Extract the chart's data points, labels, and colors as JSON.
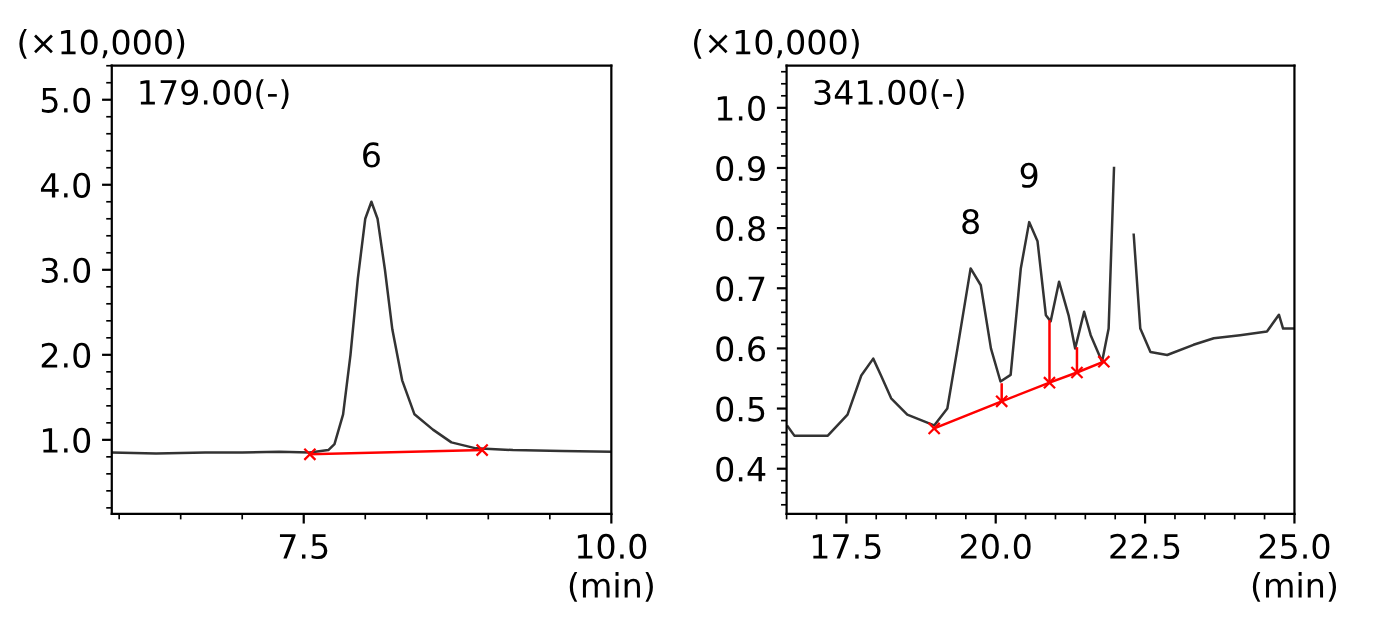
{
  "chart_data": [
    {
      "type": "line",
      "ylabel": "(×10,000)",
      "xlabel": "(min)",
      "annotations": [
        "179.00(-)",
        {
          "text": "6",
          "x": 8.05,
          "y": 3.8
        }
      ],
      "xlim": [
        5.94,
        10.0
      ],
      "xticks": [
        7.5,
        {
          "value": 10.0,
          "label": "10.0"
        }
      ],
      "ylim": [
        0.13,
        5.4
      ],
      "yticks": [
        {
          "value": 1,
          "label": "1.0"
        },
        {
          "value": 2,
          "label": "2.0"
        },
        {
          "value": 3,
          "label": "3.0"
        },
        {
          "value": 4,
          "label": "4.0"
        },
        {
          "value": 5,
          "label": "5.0"
        }
      ],
      "grid": false,
      "legend": false,
      "series": [
        {
          "color": "#333333",
          "x": [
            5.94,
            6.3,
            6.7,
            7.0,
            7.3,
            7.55,
            7.7,
            7.75,
            7.82,
            7.88,
            7.94,
            8.0,
            8.05,
            8.1,
            8.16,
            8.22,
            8.3,
            8.4,
            8.55,
            8.7,
            8.9,
            9.2,
            9.6,
            10.0
          ],
          "values": [
            0.85,
            0.84,
            0.85,
            0.85,
            0.86,
            0.85,
            0.88,
            0.95,
            1.3,
            2.0,
            2.9,
            3.6,
            3.8,
            3.6,
            3.0,
            2.3,
            1.7,
            1.3,
            1.12,
            0.97,
            0.9,
            0.88,
            0.87,
            0.86
          ]
        },
        {
          "color": "#ff0000",
          "marker": "cross",
          "x": [
            7.55,
            8.95
          ],
          "values": [
            0.83,
            0.88
          ]
        }
      ]
    },
    {
      "type": "line",
      "ylabel": "(×10,000)",
      "xlabel": "(min)",
      "annotations": [
        "341.00(-)",
        {
          "text": "8",
          "x": 19.58,
          "y": 0.733
        },
        {
          "text": "9",
          "x": 20.56,
          "y": 0.81
        }
      ],
      "xlim": [
        16.5,
        25.0
      ],
      "xticks": [
        17.5,
        {
          "value": 20.0,
          "label": "20.0"
        },
        22.5,
        {
          "value": 25.0,
          "label": "25.0"
        }
      ],
      "ylim": [
        0.325,
        1.07
      ],
      "yticks": [
        0.4,
        0.5,
        0.6,
        0.7,
        0.8,
        0.9,
        {
          "value": 1.0,
          "label": "1.0"
        }
      ],
      "grid": false,
      "legend": false,
      "series": [
        {
          "color": "#333333",
          "x": [
            16.52,
            16.63,
            17.19,
            17.52,
            17.75,
            17.95,
            18.08,
            18.25,
            18.52,
            18.97,
            19.19,
            19.36,
            19.58,
            19.75,
            19.92,
            20.08,
            20.25,
            20.42,
            20.56,
            20.7,
            20.84,
            20.92,
            21.06,
            21.22,
            21.33,
            21.48,
            21.59,
            21.78,
            21.89,
            21.98,
            22.03,
            22.2,
            22.31,
            22.42,
            22.59,
            22.87,
            23.31,
            23.65,
            24.09,
            24.54,
            24.74,
            24.81,
            25.0
          ],
          "values": [
            0.47,
            0.455,
            0.455,
            0.49,
            0.555,
            0.583,
            0.555,
            0.517,
            0.49,
            0.472,
            0.5,
            0.6,
            0.733,
            0.705,
            0.6,
            0.545,
            0.556,
            0.733,
            0.81,
            0.778,
            0.655,
            0.645,
            0.711,
            0.655,
            0.6,
            0.661,
            0.622,
            0.578,
            0.633,
            0.9,
            null,
            null,
            0.789,
            0.633,
            0.594,
            0.589,
            0.606,
            0.617,
            0.622,
            0.628,
            0.656,
            0.633,
            0.633
          ]
        },
        {
          "color": "#ff0000",
          "marker": "cross",
          "x": [
            18.97,
            20.1,
            20.9,
            21.36,
            21.81
          ],
          "values": [
            0.467,
            0.512,
            0.543,
            0.56,
            0.578
          ]
        },
        {
          "color": "#ff0000",
          "x": [
            20.1,
            20.1
          ],
          "values": [
            0.512,
            0.54
          ]
        },
        {
          "color": "#ff0000",
          "x": [
            20.9,
            20.9
          ],
          "values": [
            0.543,
            0.645
          ]
        },
        {
          "color": "#ff0000",
          "x": [
            21.36,
            21.36
          ],
          "values": [
            0.56,
            0.6
          ]
        }
      ]
    }
  ]
}
